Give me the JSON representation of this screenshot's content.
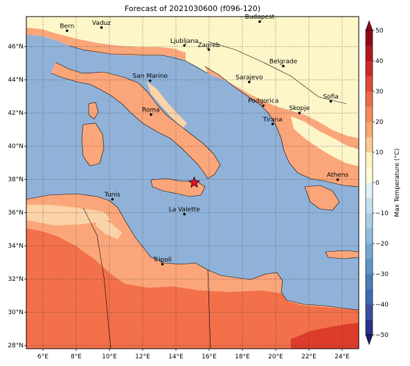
{
  "title": "Forecast of 2021030600 (f096-120)",
  "map": {
    "lon_range": [
      5,
      25
    ],
    "lat_range": [
      27.8,
      47.8
    ],
    "lon_ticks": [
      "6°E",
      "8°E",
      "10°E",
      "12°E",
      "14°E",
      "16°E",
      "18°E",
      "20°E",
      "22°E",
      "24°E"
    ],
    "lat_ticks": [
      "28°N",
      "30°N",
      "32°N",
      "34°N",
      "36°N",
      "38°N",
      "40°N",
      "42°N",
      "44°N",
      "46°N"
    ],
    "gridlines": true,
    "marker": {
      "type": "star",
      "lon": 15.1,
      "lat": 37.8,
      "color": "#e8102a"
    }
  },
  "cities": [
    {
      "name": "Bern",
      "lon": 7.45,
      "lat": 46.95
    },
    {
      "name": "Vaduz",
      "lon": 9.52,
      "lat": 47.14
    },
    {
      "name": "Budapest",
      "lon": 19.04,
      "lat": 47.5
    },
    {
      "name": "Ljubljana",
      "lon": 14.51,
      "lat": 46.06
    },
    {
      "name": "Zagreb",
      "lon": 15.98,
      "lat": 45.81
    },
    {
      "name": "Belgrade",
      "lon": 20.46,
      "lat": 44.82
    },
    {
      "name": "San Marino",
      "lon": 12.45,
      "lat": 43.94
    },
    {
      "name": "Sarajevo",
      "lon": 18.41,
      "lat": 43.86
    },
    {
      "name": "Sofia",
      "lon": 23.32,
      "lat": 42.7
    },
    {
      "name": "Roma",
      "lon": 12.5,
      "lat": 41.9
    },
    {
      "name": "Podgorica",
      "lon": 19.26,
      "lat": 42.44
    },
    {
      "name": "Skopje",
      "lon": 21.43,
      "lat": 42.0
    },
    {
      "name": "Tirana",
      "lon": 19.82,
      "lat": 41.33
    },
    {
      "name": "Athens",
      "lon": 23.73,
      "lat": 37.98
    },
    {
      "name": "Tunis",
      "lon": 10.18,
      "lat": 36.8
    },
    {
      "name": "La Valette",
      "lon": 14.51,
      "lat": 35.9
    },
    {
      "name": "Tripoli",
      "lon": 13.19,
      "lat": 32.89
    }
  ],
  "colorbar": {
    "label": "Max Temperature (°C)",
    "ticks": [
      "50",
      "40",
      "30",
      "20",
      "10",
      "0",
      "−10",
      "−20",
      "−30",
      "−40",
      "−50"
    ],
    "levels": [
      -50,
      -45,
      -40,
      -35,
      -30,
      -25,
      -20,
      -15,
      -10,
      -5,
      0,
      5,
      10,
      15,
      20,
      25,
      30,
      35,
      40,
      45,
      50
    ],
    "colors": [
      "#2a2f8c",
      "#3a4fa0",
      "#3e6aae",
      "#4a7db9",
      "#5e94c6",
      "#74a8d0",
      "#8fbcdc",
      "#a8cde4",
      "#c3e0ec",
      "#e0f2f6",
      "#fffbd2",
      "#fef3c2",
      "#fcc98f",
      "#f9a872",
      "#f48a5c",
      "#ec6c49",
      "#e04a35",
      "#cc2a28",
      "#b3181f",
      "#8e0a18"
    ]
  },
  "colors": {
    "sea": "#91b2d8",
    "cold_land": "#fdf6c9",
    "mild": "#fba67a",
    "warm": "#f2704a",
    "hot": "#dd3c2c",
    "pale": "#fbd3a8"
  }
}
